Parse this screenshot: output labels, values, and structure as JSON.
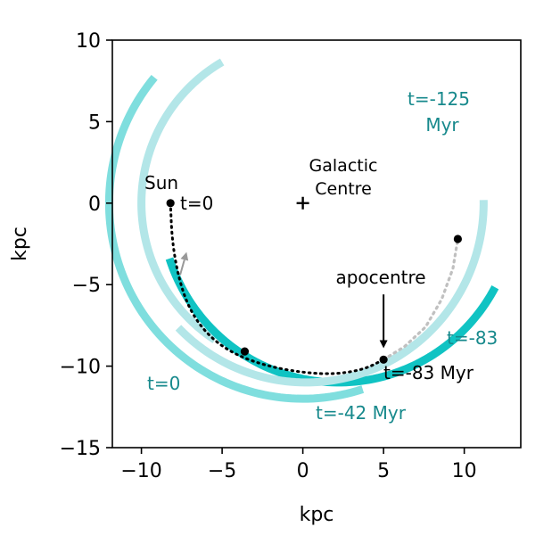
{
  "chart_data": {
    "type": "line",
    "xlabel": "kpc",
    "ylabel": "kpc",
    "xlim": [
      -11.8,
      13.5
    ],
    "ylim": [
      -15,
      10
    ],
    "xticks": [
      -10,
      -5,
      0,
      5,
      10
    ],
    "yticks": [
      10,
      5,
      0,
      -5,
      -10,
      -15
    ],
    "xtick_labels": [
      "−10",
      "−5",
      "0",
      "5",
      "10"
    ],
    "ytick_labels": [
      "10",
      "5",
      "0",
      "−5",
      "−10",
      "−15"
    ],
    "grid": false,
    "colors": {
      "arc_t0": "#b3e6e8",
      "arc_t42": "#7fdede",
      "arc_t83": "#10c3c3",
      "arc_t125": "#b3e6e8",
      "orbit": "#000000",
      "orbit_future": "#c0c0c0",
      "teal_text": "#17898c",
      "arrow_gray": "#999999"
    },
    "arcs": [
      {
        "key": "t0",
        "label": "t=0",
        "center": [
          0,
          0
        ],
        "radius": 10.0,
        "theta_start_deg": 120,
        "theta_end_deg": 237
      },
      {
        "key": "t42",
        "label": "t=-42 Myr",
        "center": [
          0,
          0
        ],
        "radius": 12.0,
        "theta_start_deg": 140,
        "theta_end_deg": 288
      },
      {
        "key": "t83",
        "label": "t=-83",
        "center": [
          2.2,
          0
        ],
        "radius": 11.0,
        "theta_start_deg": 198,
        "theta_end_deg": 332
      },
      {
        "key": "t125",
        "label": "t=-125 Myr",
        "center": [
          0.2,
          0
        ],
        "radius": 11.0,
        "theta_start_deg": 224,
        "theta_end_deg": 361
      }
    ],
    "orbit": {
      "x": [
        -8.2,
        -8.1,
        -7.7,
        -7.0,
        -5.8,
        -4.2,
        -2.2,
        0.0,
        2.0,
        3.8,
        5.0
      ],
      "y": [
        0.0,
        -2.3,
        -4.6,
        -6.6,
        -8.2,
        -9.3,
        -10.0,
        -10.4,
        -10.5,
        -10.2,
        -9.6
      ]
    },
    "orbit_future": {
      "x": [
        5.0,
        6.3,
        7.6,
        8.6,
        9.3,
        9.6
      ],
      "y": [
        -9.6,
        -8.8,
        -7.6,
        -5.9,
        -4.0,
        -2.2
      ]
    },
    "points": [
      {
        "x": -8.2,
        "y": 0.0
      },
      {
        "x": -3.6,
        "y": -9.1
      },
      {
        "x": 5.0,
        "y": -9.6
      },
      {
        "x": 9.6,
        "y": -2.2
      }
    ],
    "galactic_centre": {
      "x": 0,
      "y": 0
    },
    "annotations": {
      "sun": "Sun",
      "t0_sun": "t=0",
      "galactic": "Galactic",
      "centre": "Centre",
      "apocentre": "apocentre",
      "t83_point": "t=-83 Myr",
      "t125_line1": "t=-125",
      "t125_line2": "Myr",
      "t83_arc": "t=-83",
      "t42_arc": "t=-42 Myr",
      "t0_arc": "t=0"
    },
    "apocentre_arrow": {
      "from": [
        5.0,
        -5.6
      ],
      "to": [
        5.0,
        -8.9
      ]
    },
    "direction_arrow": {
      "from": [
        -7.6,
        -4.4
      ],
      "to": [
        -7.2,
        -3.0
      ]
    }
  }
}
